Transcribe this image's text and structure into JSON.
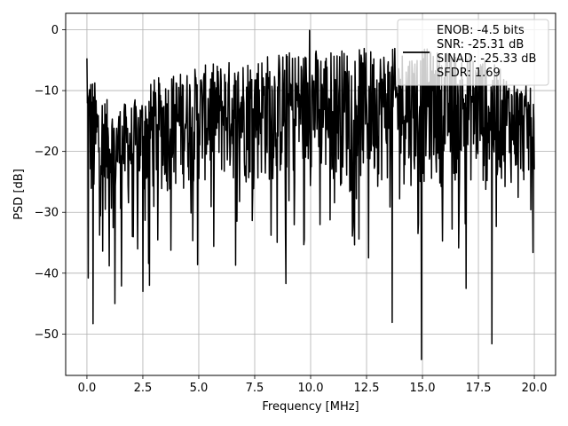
{
  "chart_data": {
    "type": "line",
    "xlabel": "Frequency [MHz]",
    "ylabel": "PSD [dB]",
    "xlim": [
      -0.95,
      20.95
    ],
    "ylim": [
      -56.8,
      2.7
    ],
    "xticks": [
      0.0,
      2.5,
      5.0,
      7.5,
      10.0,
      12.5,
      15.0,
      17.5,
      20.0
    ],
    "xtick_labels": [
      "0.0",
      "2.5",
      "5.0",
      "7.5",
      "10.0",
      "12.5",
      "15.0",
      "17.5",
      "20.0"
    ],
    "yticks": [
      0,
      -10,
      -20,
      -30,
      -40,
      -50
    ],
    "ytick_labels": [
      "0",
      "−10",
      "−20",
      "−30",
      "−40",
      "−50"
    ],
    "grid": true,
    "legend_position": "top-right",
    "legend": [
      "ENOB: -4.5 bits",
      "SNR: -25.31 dB",
      "SINAD: -25.33 dB",
      "SFDR: 1.69"
    ],
    "line_color": "#000000",
    "series": [
      {
        "name": "ENOB: -4.5 bits\nSNR: -25.31 dB\nSINAD: -25.33 dB\nSFDR: 1.69",
        "x_range": [
          0.0,
          20.0
        ],
        "n_points": 1024,
        "envelope": {
          "x": [
            0.0,
            0.3,
            1.0,
            2.0,
            3.0,
            5.0,
            7.5,
            10.0,
            12.5,
            15.0,
            17.5,
            20.0
          ],
          "upper": [
            -5,
            -8,
            -12,
            -12,
            -8,
            -6,
            -4,
            -3,
            -3,
            -3,
            -4,
            -10
          ],
          "lower": [
            -30,
            -32,
            -30,
            -30,
            -28,
            -26,
            -26,
            -26,
            -26,
            -26,
            -26,
            -26
          ]
        },
        "notable_points": [
          {
            "x": 0.0,
            "y": -4.7
          },
          {
            "x": 0.05,
            "y": -40.8
          },
          {
            "x": 0.28,
            "y": -48.3
          },
          {
            "x": 1.0,
            "y": -38.8
          },
          {
            "x": 1.25,
            "y": -45.0
          },
          {
            "x": 1.55,
            "y": -42.1
          },
          {
            "x": 2.5,
            "y": -43.0
          },
          {
            "x": 2.8,
            "y": -42.0
          },
          {
            "x": 4.95,
            "y": -38.6
          },
          {
            "x": 6.65,
            "y": -38.7
          },
          {
            "x": 8.9,
            "y": -41.7
          },
          {
            "x": 9.95,
            "y": -0.1
          },
          {
            "x": 12.6,
            "y": -37.5
          },
          {
            "x": 13.65,
            "y": -48.1
          },
          {
            "x": 14.95,
            "y": -54.2
          },
          {
            "x": 16.95,
            "y": -42.5
          },
          {
            "x": 18.1,
            "y": -51.6
          },
          {
            "x": 19.95,
            "y": -36.6
          }
        ]
      }
    ]
  }
}
